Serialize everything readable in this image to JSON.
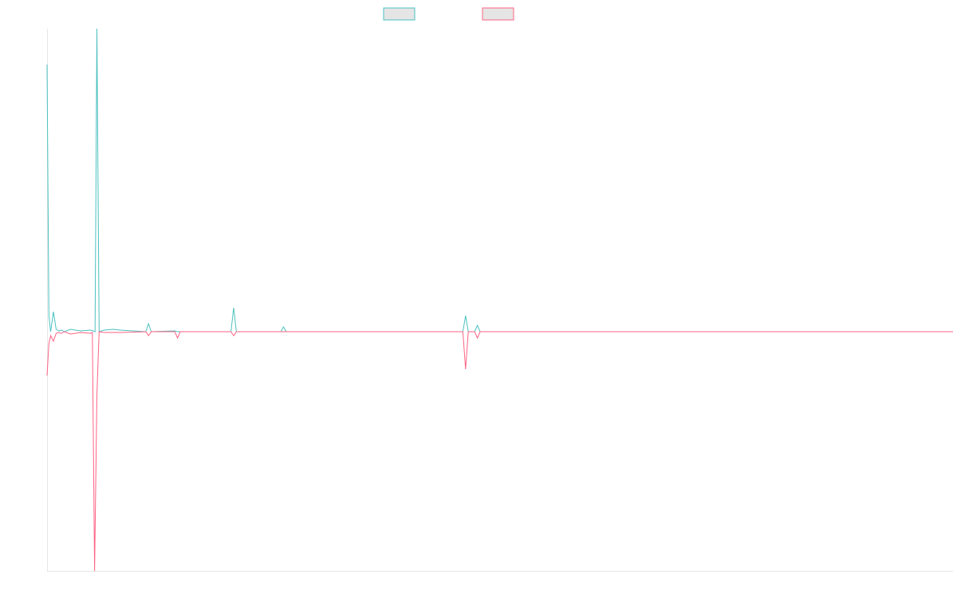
{
  "chart_data": {
    "type": "line",
    "title": "",
    "xlabel": "",
    "ylabel": "",
    "legend_position": "top-center",
    "grid": false,
    "x_range": [
      0,
      100
    ],
    "ylim": [
      -300,
      380
    ],
    "series": [
      {
        "color": "#4bc0c0",
        "fill": "#e5e5e5",
        "points": [
          [
            0.0,
            335
          ],
          [
            0.2,
            20
          ],
          [
            0.4,
            0
          ],
          [
            0.7,
            25
          ],
          [
            1.0,
            3
          ],
          [
            1.3,
            1
          ],
          [
            1.6,
            2
          ],
          [
            1.9,
            0
          ],
          [
            2.6,
            3
          ],
          [
            3.7,
            1
          ],
          [
            4.8,
            2
          ],
          [
            5.3,
            0
          ],
          [
            5.5,
            380
          ],
          [
            5.75,
            0
          ],
          [
            6.3,
            2
          ],
          [
            7.3,
            3
          ],
          [
            8.1,
            2
          ],
          [
            10.9,
            0
          ],
          [
            11.2,
            10
          ],
          [
            11.5,
            0
          ],
          [
            14.1,
            1
          ],
          [
            14.4,
            0
          ],
          [
            20.3,
            0
          ],
          [
            20.6,
            30
          ],
          [
            20.9,
            0
          ],
          [
            25.8,
            0
          ],
          [
            26.1,
            6
          ],
          [
            26.4,
            0
          ],
          [
            45.9,
            0
          ],
          [
            46.2,
            20
          ],
          [
            46.5,
            0
          ],
          [
            47.2,
            0
          ],
          [
            47.5,
            8
          ],
          [
            47.8,
            0
          ],
          [
            100,
            0
          ]
        ]
      },
      {
        "color": "#ff6384",
        "fill": "#e5e5e5",
        "points": [
          [
            0.0,
            -55
          ],
          [
            0.2,
            -15
          ],
          [
            0.4,
            -5
          ],
          [
            0.7,
            -12
          ],
          [
            1.0,
            -2
          ],
          [
            1.3,
            -1
          ],
          [
            1.6,
            -2
          ],
          [
            1.9,
            0
          ],
          [
            2.6,
            -3
          ],
          [
            3.7,
            -1
          ],
          [
            4.8,
            -2
          ],
          [
            5.0,
            -1
          ],
          [
            5.25,
            -300
          ],
          [
            5.5,
            -80
          ],
          [
            5.75,
            0
          ],
          [
            6.3,
            -1
          ],
          [
            7.3,
            -1
          ],
          [
            8.1,
            -1
          ],
          [
            10.9,
            0
          ],
          [
            11.2,
            -5
          ],
          [
            11.5,
            0
          ],
          [
            14.1,
            0
          ],
          [
            14.4,
            -8
          ],
          [
            14.7,
            0
          ],
          [
            20.3,
            0
          ],
          [
            20.6,
            -5
          ],
          [
            20.9,
            0
          ],
          [
            45.9,
            0
          ],
          [
            46.2,
            -47
          ],
          [
            46.5,
            0
          ],
          [
            47.2,
            0
          ],
          [
            47.5,
            -8
          ],
          [
            47.8,
            0
          ],
          [
            100,
            0
          ]
        ]
      }
    ]
  }
}
